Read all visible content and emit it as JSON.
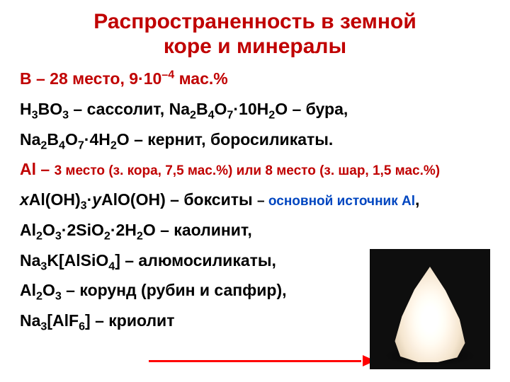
{
  "title_line1": "Распространенность в земной",
  "title_line2": "коре и минералы",
  "b_head": "B – 28 место, 9·10",
  "b_head_exp": "–4",
  "b_head_tail": " мас.%",
  "b_line1_a": "H",
  "b_line1_b": "3",
  "b_line1_c": "BO",
  "b_line1_d": "3",
  "b_line1_e": " – сассолит, Na",
  "b_line1_f": "2",
  "b_line1_g": "B",
  "b_line1_h": "4",
  "b_line1_i": "O",
  "b_line1_j": "7",
  "b_line1_k": "·10H",
  "b_line1_l": "2",
  "b_line1_m": "O – бура,",
  "b_line2_a": "Na",
  "b_line2_b": "2",
  "b_line2_c": "B",
  "b_line2_d": "4",
  "b_line2_e": "O",
  "b_line2_f": "7",
  "b_line2_g": "·4H",
  "b_line2_h": "2",
  "b_line2_i": "O – кернит, боросиликаты.",
  "al_head_a": "Al – ",
  "al_head_b": "3 место ",
  "al_head_c": "(з. кора, 7,5 мас.%)",
  "al_head_d": " или 8 место ",
  "al_head_e": "(з. шар, 1,5 мас.%)",
  "al_l1_a": "x",
  "al_l1_b": "Al(OH)",
  "al_l1_c": "3",
  "al_l1_d": "·",
  "al_l1_e": "y",
  "al_l1_f": "AlO(OH) – бокситы ",
  "al_l1_g": "– ",
  "al_l1_h": "основной источник Al",
  "al_l1_i": ",",
  "al_l2_a": "Al",
  "al_l2_b": "2",
  "al_l2_c": "O",
  "al_l2_d": "3",
  "al_l2_e": "·2SiO",
  "al_l2_f": "2",
  "al_l2_g": "·2H",
  "al_l2_h": "2",
  "al_l2_i": "O – каолинит,",
  "al_l3_a": "Na",
  "al_l3_b": "3",
  "al_l3_c": "K[AlSiO",
  "al_l3_d": "4",
  "al_l3_e": "] – алюмосиликаты,",
  "al_l4_a": "Al",
  "al_l4_b": "2",
  "al_l4_c": "O",
  "al_l4_d": "3",
  "al_l4_e": " – корунд (рубин и сапфир),",
  "al_l5_a": "Na",
  "al_l5_b": "3",
  "al_l5_c": "[AlF",
  "al_l5_d": "6",
  "al_l5_e": "] – криолит"
}
